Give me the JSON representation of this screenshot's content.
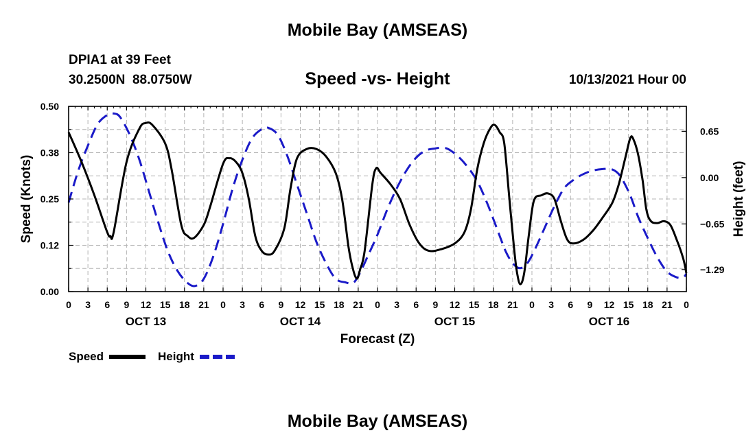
{
  "colors": {
    "speed": "#000000",
    "height": "#1a1ac8",
    "grid": "#b4b4b4"
  },
  "header": {
    "title": "Mobile Bay (AMSEAS)",
    "station": "DPIA1 at 39 Feet",
    "coords": "30.2500N  88.0750W",
    "subtitle": "Speed -vs- Height",
    "datetime": "10/13/2021 Hour 00"
  },
  "footer": {
    "title": "Mobile Bay (AMSEAS)"
  },
  "chart_data": {
    "type": "line",
    "title": "Speed -vs- Height",
    "xlabel": "Forecast (Z)",
    "ylabel": "Speed (Knots)",
    "y2label": "Height (feet)",
    "xlim": [
      0,
      96
    ],
    "ylim": [
      0,
      0.5
    ],
    "y2lim": [
      -1.6,
      1.0
    ],
    "xticks": [
      {
        "x": 0,
        "label": "0"
      },
      {
        "x": 3,
        "label": "3"
      },
      {
        "x": 6,
        "label": "6"
      },
      {
        "x": 9,
        "label": "9"
      },
      {
        "x": 12,
        "label": "12"
      },
      {
        "x": 15,
        "label": "15"
      },
      {
        "x": 18,
        "label": "18"
      },
      {
        "x": 21,
        "label": "21"
      },
      {
        "x": 24,
        "label": "0"
      },
      {
        "x": 27,
        "label": "3"
      },
      {
        "x": 30,
        "label": "6"
      },
      {
        "x": 33,
        "label": "9"
      },
      {
        "x": 36,
        "label": "12"
      },
      {
        "x": 39,
        "label": "15"
      },
      {
        "x": 42,
        "label": "18"
      },
      {
        "x": 45,
        "label": "21"
      },
      {
        "x": 48,
        "label": "0"
      },
      {
        "x": 51,
        "label": "3"
      },
      {
        "x": 54,
        "label": "6"
      },
      {
        "x": 57,
        "label": "9"
      },
      {
        "x": 60,
        "label": "12"
      },
      {
        "x": 63,
        "label": "15"
      },
      {
        "x": 66,
        "label": "18"
      },
      {
        "x": 69,
        "label": "21"
      },
      {
        "x": 72,
        "label": "0"
      },
      {
        "x": 75,
        "label": "3"
      },
      {
        "x": 78,
        "label": "6"
      },
      {
        "x": 81,
        "label": "9"
      },
      {
        "x": 84,
        "label": "12"
      },
      {
        "x": 87,
        "label": "15"
      },
      {
        "x": 90,
        "label": "18"
      },
      {
        "x": 93,
        "label": "21"
      },
      {
        "x": 96,
        "label": "0"
      }
    ],
    "day_labels": [
      {
        "x": 12,
        "label": "OCT 13"
      },
      {
        "x": 36,
        "label": "OCT 14"
      },
      {
        "x": 60,
        "label": "OCT 15"
      },
      {
        "x": 84,
        "label": "OCT 16"
      }
    ],
    "yticks": [
      {
        "v": 0.0,
        "label": "0.00"
      },
      {
        "v": 0.125,
        "label": "0.12"
      },
      {
        "v": 0.25,
        "label": "0.25"
      },
      {
        "v": 0.375,
        "label": "0.38"
      },
      {
        "v": 0.5,
        "label": "0.50"
      }
    ],
    "y2ticks": [
      {
        "v": 0.65,
        "label": "0.65"
      },
      {
        "v": 0.0,
        "label": "0.00"
      },
      {
        "v": -0.65,
        "label": "−0.65"
      },
      {
        "v": -1.29,
        "label": "−1.29"
      }
    ],
    "legend": [
      {
        "name": "Speed",
        "style": "solid"
      },
      {
        "name": "Height",
        "style": "dashed"
      }
    ],
    "series": [
      {
        "name": "Speed",
        "points": [
          [
            0,
            0.43
          ],
          [
            2,
            0.35
          ],
          [
            4,
            0.26
          ],
          [
            6,
            0.16
          ],
          [
            6.5,
            0.15
          ],
          [
            7,
            0.16
          ],
          [
            9,
            0.35
          ],
          [
            11,
            0.44
          ],
          [
            12,
            0.455
          ],
          [
            13,
            0.45
          ],
          [
            15,
            0.4
          ],
          [
            16,
            0.33
          ],
          [
            17.5,
            0.18
          ],
          [
            18.5,
            0.15
          ],
          [
            19.5,
            0.145
          ],
          [
            21,
            0.18
          ],
          [
            22,
            0.23
          ],
          [
            24,
            0.345
          ],
          [
            25,
            0.36
          ],
          [
            26,
            0.35
          ],
          [
            27,
            0.32
          ],
          [
            28,
            0.25
          ],
          [
            29,
            0.15
          ],
          [
            30,
            0.11
          ],
          [
            31,
            0.1
          ],
          [
            32,
            0.11
          ],
          [
            33.5,
            0.17
          ],
          [
            34.5,
            0.28
          ],
          [
            35.5,
            0.36
          ],
          [
            37,
            0.385
          ],
          [
            38.5,
            0.385
          ],
          [
            40,
            0.365
          ],
          [
            41.5,
            0.32
          ],
          [
            42.5,
            0.25
          ],
          [
            43.5,
            0.12
          ],
          [
            44.2,
            0.06
          ],
          [
            44.8,
            0.035
          ],
          [
            45.3,
            0.06
          ],
          [
            46,
            0.11
          ],
          [
            47.2,
            0.29
          ],
          [
            47.8,
            0.333
          ],
          [
            48.5,
            0.32
          ],
          [
            50,
            0.29
          ],
          [
            51.5,
            0.25
          ],
          [
            53,
            0.18
          ],
          [
            54.5,
            0.13
          ],
          [
            56,
            0.11
          ],
          [
            58,
            0.115
          ],
          [
            60,
            0.13
          ],
          [
            61.5,
            0.16
          ],
          [
            62.5,
            0.22
          ],
          [
            63.5,
            0.33
          ],
          [
            64.5,
            0.4
          ],
          [
            65.5,
            0.44
          ],
          [
            66.2,
            0.45
          ],
          [
            67,
            0.43
          ],
          [
            67.7,
            0.4
          ],
          [
            68.5,
            0.25
          ],
          [
            69.2,
            0.12
          ],
          [
            69.7,
            0.05
          ],
          [
            70.2,
            0.02
          ],
          [
            70.8,
            0.05
          ],
          [
            71.5,
            0.15
          ],
          [
            72.3,
            0.245
          ],
          [
            73.5,
            0.26
          ],
          [
            74.5,
            0.265
          ],
          [
            75.5,
            0.25
          ],
          [
            76.5,
            0.19
          ],
          [
            77.5,
            0.14
          ],
          [
            78.5,
            0.13
          ],
          [
            80,
            0.14
          ],
          [
            81.5,
            0.165
          ],
          [
            83,
            0.2
          ],
          [
            84.5,
            0.24
          ],
          [
            85.5,
            0.29
          ],
          [
            86.5,
            0.36
          ],
          [
            87.3,
            0.415
          ],
          [
            87.8,
            0.41
          ],
          [
            88.5,
            0.37
          ],
          [
            89.2,
            0.3
          ],
          [
            89.8,
            0.22
          ],
          [
            90.5,
            0.19
          ],
          [
            91.5,
            0.185
          ],
          [
            92.5,
            0.19
          ],
          [
            93.5,
            0.18
          ],
          [
            94.5,
            0.14
          ],
          [
            95.5,
            0.09
          ],
          [
            96,
            0.05
          ]
        ]
      },
      {
        "name": "Height",
        "points": [
          [
            0,
            -0.35
          ],
          [
            1.5,
            0.1
          ],
          [
            3,
            0.45
          ],
          [
            4.5,
            0.75
          ],
          [
            6,
            0.88
          ],
          [
            7,
            0.9
          ],
          [
            8,
            0.85
          ],
          [
            9.5,
            0.6
          ],
          [
            11,
            0.25
          ],
          [
            12.5,
            -0.2
          ],
          [
            14,
            -0.65
          ],
          [
            15.5,
            -1.05
          ],
          [
            17,
            -1.32
          ],
          [
            18.5,
            -1.48
          ],
          [
            19.7,
            -1.52
          ],
          [
            21,
            -1.42
          ],
          [
            22.5,
            -1.1
          ],
          [
            24,
            -0.65
          ],
          [
            25.5,
            -0.15
          ],
          [
            27,
            0.25
          ],
          [
            28.5,
            0.55
          ],
          [
            30,
            0.68
          ],
          [
            31,
            0.7
          ],
          [
            32.5,
            0.6
          ],
          [
            34,
            0.3
          ],
          [
            35.5,
            -0.1
          ],
          [
            37,
            -0.5
          ],
          [
            38.5,
            -0.9
          ],
          [
            40,
            -1.2
          ],
          [
            41.5,
            -1.42
          ],
          [
            43,
            -1.47
          ],
          [
            44.2,
            -1.48
          ],
          [
            45.2,
            -1.35
          ],
          [
            46.5,
            -1.1
          ],
          [
            48,
            -0.8
          ],
          [
            49.5,
            -0.45
          ],
          [
            51,
            -0.15
          ],
          [
            52.5,
            0.1
          ],
          [
            54,
            0.28
          ],
          [
            55.5,
            0.38
          ],
          [
            57,
            0.41
          ],
          [
            58,
            0.42
          ],
          [
            59,
            0.4
          ],
          [
            60.5,
            0.3
          ],
          [
            62,
            0.15
          ],
          [
            63.5,
            -0.05
          ],
          [
            65,
            -0.35
          ],
          [
            66.5,
            -0.7
          ],
          [
            68,
            -1.05
          ],
          [
            69.2,
            -1.22
          ],
          [
            70.2,
            -1.27
          ],
          [
            71.3,
            -1.2
          ],
          [
            72.5,
            -1.0
          ],
          [
            74,
            -0.7
          ],
          [
            75.5,
            -0.4
          ],
          [
            77,
            -0.15
          ],
          [
            78.5,
            -0.03
          ],
          [
            80,
            0.05
          ],
          [
            81.5,
            0.1
          ],
          [
            83,
            0.12
          ],
          [
            84.3,
            0.12
          ],
          [
            85.5,
            0.05
          ],
          [
            86.5,
            -0.1
          ],
          [
            87.5,
            -0.3
          ],
          [
            88.5,
            -0.55
          ],
          [
            90,
            -0.85
          ],
          [
            91.5,
            -1.12
          ],
          [
            93,
            -1.32
          ],
          [
            94.5,
            -1.4
          ],
          [
            95.5,
            -1.4
          ],
          [
            96,
            -1.35
          ]
        ]
      }
    ]
  }
}
